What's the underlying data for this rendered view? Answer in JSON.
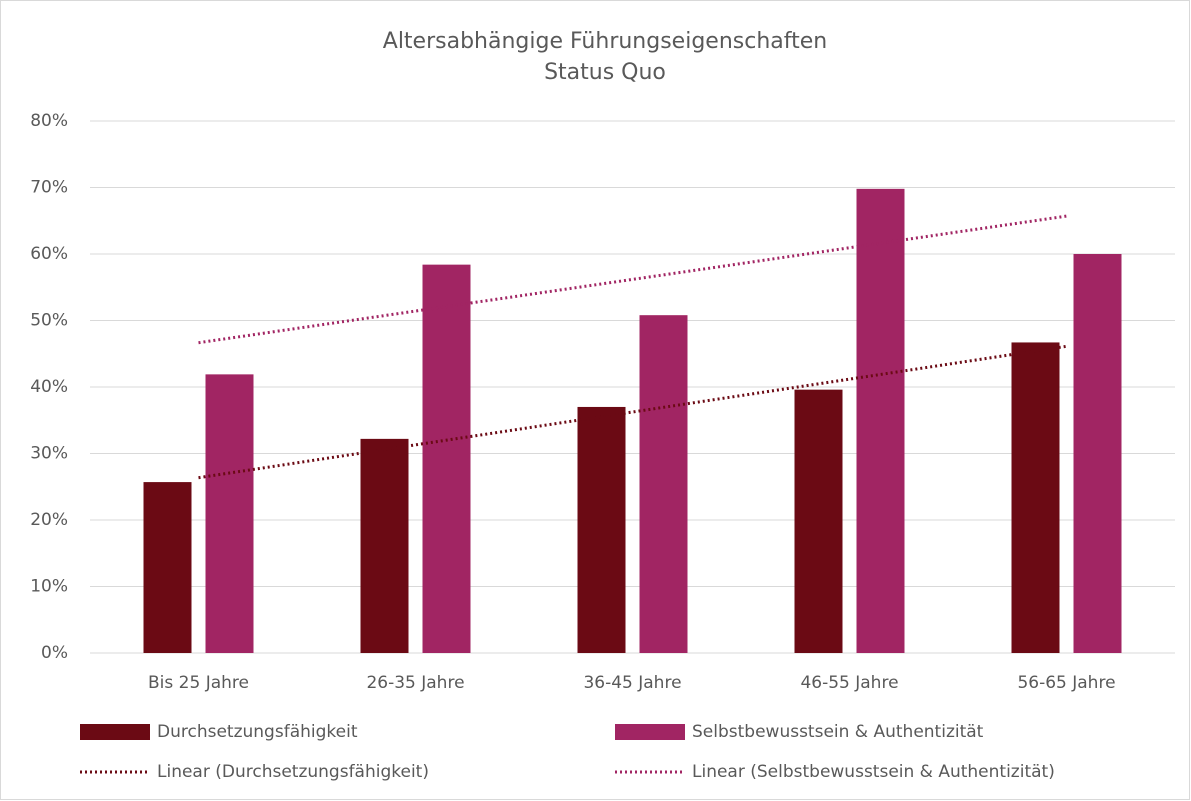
{
  "chart_data": {
    "type": "bar",
    "title": [
      "Altersabhängige Führungseigenschaften",
      "Status Quo"
    ],
    "categories": [
      "Bis 25 Jahre",
      "26-35 Jahre",
      "36-45 Jahre",
      "46-55 Jahre",
      "56-65 Jahre"
    ],
    "series": [
      {
        "name": "Durchsetzungsfähigkeit",
        "color": "#6b0a14",
        "values": [
          25.7,
          32.2,
          37.0,
          39.6,
          46.7
        ],
        "trendline": "linear",
        "trendline_name": "Linear (Durchsetzungsfähigkeit)"
      },
      {
        "name": "Selbstbewusstsein & Authentizität",
        "color": "#a12563",
        "values": [
          41.9,
          58.4,
          50.8,
          69.8,
          60.0
        ],
        "trendline": "linear",
        "trendline_name": "Linear (Selbstbewusstsein & Authentizität)"
      }
    ],
    "ylim": [
      0,
      80
    ],
    "yticks": [
      {
        "value": 0,
        "label": "0%"
      },
      {
        "value": 10,
        "label": "10%"
      },
      {
        "value": 20,
        "label": "20%"
      },
      {
        "value": 30,
        "label": "30%"
      },
      {
        "value": 40,
        "label": "40%"
      },
      {
        "value": 50,
        "label": "50%"
      },
      {
        "value": 60,
        "label": "60%"
      },
      {
        "value": 70,
        "label": "70%"
      },
      {
        "value": 80,
        "label": "80%"
      }
    ],
    "grid": true,
    "legend": "bottom"
  }
}
